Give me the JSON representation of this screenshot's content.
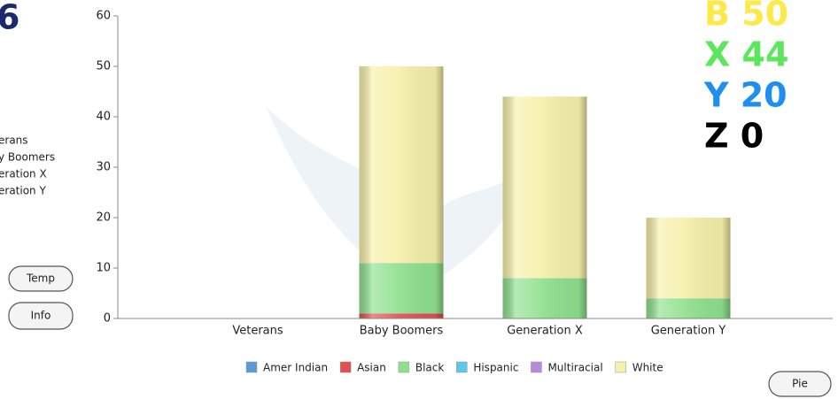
{
  "header": {
    "title": "6"
  },
  "side_legend": [
    "erans",
    "y Boomers",
    "eration X",
    "eration Y"
  ],
  "buttons": [
    "Temp",
    "Info",
    "Pie"
  ],
  "counters": [
    {
      "label": "B 50",
      "color": "#ffe84a"
    },
    {
      "label": "X 44",
      "color": "#5ce65c"
    },
    {
      "label": "Y 20",
      "color": "#1e8ff0"
    },
    {
      "label": "Z 0",
      "color": "#000000"
    }
  ],
  "chart_data": {
    "type": "stacked_bar",
    "categories": [
      "Veterans",
      "Baby Boomers",
      "Generation X",
      "Generation Y"
    ],
    "series": [
      {
        "name": "Amer Indian",
        "color": "#5b9bd5",
        "values": [
          0,
          0,
          0,
          0
        ]
      },
      {
        "name": "Asian",
        "color": "#e05050",
        "values": [
          0,
          1,
          0,
          0
        ]
      },
      {
        "name": "Black",
        "color": "#8ee08e",
        "values": [
          0,
          10,
          8,
          4
        ]
      },
      {
        "name": "Hispanic",
        "color": "#5bc8e8",
        "values": [
          0,
          0,
          0,
          0
        ]
      },
      {
        "name": "Multiracial",
        "color": "#b58ad8",
        "values": [
          0,
          0,
          0,
          0
        ]
      },
      {
        "name": "White",
        "color": "#f6f0aa",
        "values": [
          0,
          39,
          36,
          16
        ]
      }
    ],
    "ylim": [
      0,
      60
    ],
    "yticks": [
      0,
      10,
      20,
      30,
      40,
      50,
      60
    ]
  }
}
